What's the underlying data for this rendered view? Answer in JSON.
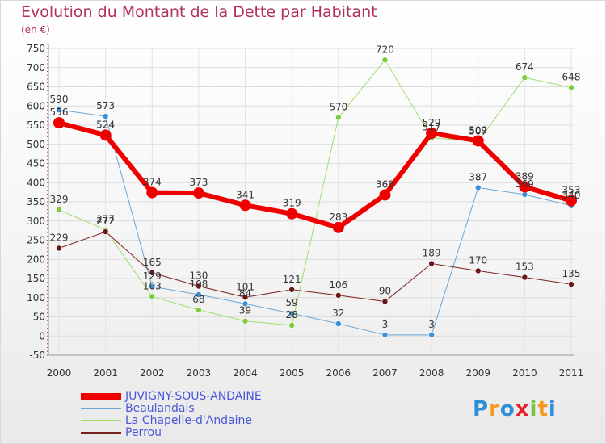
{
  "chart_data": {
    "type": "line",
    "title": "Evolution du Montant de la Dette par Habitant",
    "subtitle": "(en €)",
    "x": [
      "2000",
      "2001",
      "2002",
      "2003",
      "2004",
      "2005",
      "2006",
      "2007",
      "2008",
      "2009",
      "2010",
      "2011"
    ],
    "ylim": [
      -50,
      750
    ],
    "yticks": [
      -50,
      0,
      50,
      100,
      150,
      200,
      250,
      300,
      350,
      400,
      450,
      500,
      550,
      600,
      650,
      700,
      750
    ],
    "grid": true,
    "legend_position": "bottom-left",
    "series": [
      {
        "name": "JUVIGNY-SOUS-ANDAINE",
        "color": "#ee0000",
        "width": 6,
        "values": [
          556,
          524,
          374,
          373,
          341,
          319,
          283,
          368,
          529,
          509,
          389,
          353
        ],
        "labels": [
          "556",
          "524",
          "374",
          "373",
          "341",
          "319",
          "283",
          "368",
          "529",
          "509",
          "389",
          "353"
        ]
      },
      {
        "name": "Beaulandais",
        "color": "#6aa6d6",
        "width": 1,
        "values": [
          590,
          573,
          129,
          108,
          84,
          59,
          32,
          3,
          3,
          387,
          369,
          340
        ],
        "labels": [
          "590",
          "573",
          "129",
          "108",
          "84",
          "59",
          "32",
          "3",
          "3",
          "387",
          "369",
          "340"
        ]
      },
      {
        "name": "La Chapelle-d'Andaine",
        "color": "#9ee06a",
        "width": 1,
        "values": [
          329,
          277,
          103,
          68,
          39,
          28,
          570,
          720,
          517,
          507,
          674,
          648
        ],
        "labels": [
          "329",
          "277",
          "103",
          "68",
          "39",
          "28",
          "570",
          "720",
          "517",
          "507",
          "674",
          "648"
        ]
      },
      {
        "name": "Perrou",
        "color": "#7a2222",
        "width": 1,
        "values": [
          229,
          272,
          165,
          130,
          101,
          121,
          106,
          90,
          189,
          170,
          153,
          135
        ],
        "labels": [
          "229",
          "272",
          "165",
          "130",
          "101",
          "121",
          "106",
          "90",
          "189",
          "170",
          "153",
          "135"
        ]
      }
    ]
  },
  "logo": {
    "text": "Proxiti",
    "letters": [
      "P",
      "r",
      "o",
      "x",
      "i",
      "t",
      "i"
    ],
    "colors": [
      "#2e8fd6",
      "#f39a1e",
      "#2e8fd6",
      "#e8212b",
      "#7cc243",
      "#f39a1e",
      "#2e8fd6"
    ]
  }
}
